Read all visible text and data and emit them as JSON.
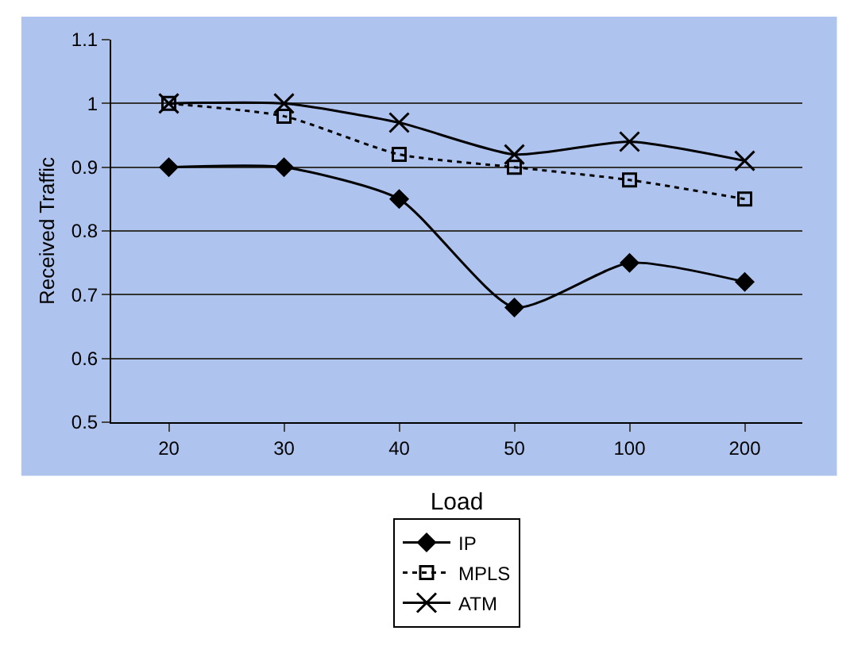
{
  "chart_data": {
    "type": "line",
    "xlabel": "Load",
    "ylabel": "Received Traffic",
    "categories": [
      "20",
      "30",
      "40",
      "50",
      "100",
      "200"
    ],
    "ylim": [
      0.5,
      1.1
    ],
    "yticks": [
      0.5,
      0.6,
      0.7,
      0.8,
      0.9,
      1,
      1.1
    ],
    "grid": "y",
    "legend": "bottom",
    "series": [
      {
        "name": "IP",
        "color": "#000000",
        "marker": "diamond",
        "line_style": "solid",
        "values": [
          0.9,
          0.9,
          0.85,
          0.68,
          0.75,
          0.72
        ]
      },
      {
        "name": "MPLS",
        "color": "#000000",
        "marker": "square",
        "line_style": "dotted",
        "values": [
          1,
          0.98,
          0.92,
          0.9,
          0.88,
          0.85
        ]
      },
      {
        "name": "ATM",
        "color": "#000000",
        "marker": "cross",
        "line_style": "solid",
        "values": [
          1,
          1,
          0.97,
          0.92,
          0.94,
          0.91
        ]
      }
    ]
  }
}
